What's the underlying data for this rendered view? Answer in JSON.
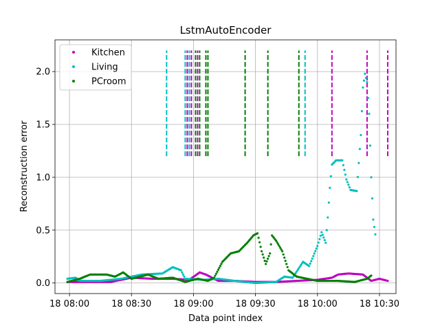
{
  "chart_data": {
    "type": "scatter",
    "title": "LstmAutoEncoder",
    "xlabel": "Data point index",
    "ylabel": "Reconstruction error",
    "xlim": [
      "2024-01-18T07:53",
      "2024-01-18T10:38"
    ],
    "ylim": [
      -0.1,
      2.3
    ],
    "grid": true,
    "legend_position": "top-left",
    "x_ticks": [
      {
        "label": "18 08:00",
        "value": "2024-01-18T08:00"
      },
      {
        "label": "18 08:30",
        "value": "2024-01-18T08:30"
      },
      {
        "label": "18 09:00",
        "value": "2024-01-18T09:00"
      },
      {
        "label": "18 09:30",
        "value": "2024-01-18T09:30"
      },
      {
        "label": "18 10:00",
        "value": "2024-01-18T10:00"
      },
      {
        "label": "18 10:30",
        "value": "2024-01-18T10:30"
      }
    ],
    "y_ticks": [
      0.0,
      0.5,
      1.0,
      1.5,
      2.0
    ],
    "y_tick_labels": [
      "0.0",
      "0.5",
      "1.0",
      "1.5",
      "2.0"
    ],
    "series": [
      {
        "name": "Kitchen",
        "color": "#bf00bf",
        "points": [
          [
            "2024-01-18T07:59",
            0.01
          ],
          [
            "2024-01-18T08:10",
            0.01
          ],
          [
            "2024-01-18T08:20",
            0.01
          ],
          [
            "2024-01-18T08:25",
            0.03
          ],
          [
            "2024-01-18T08:30",
            0.05
          ],
          [
            "2024-01-18T08:40",
            0.04
          ],
          [
            "2024-01-18T08:50",
            0.04
          ],
          [
            "2024-01-18T08:58",
            0.03
          ],
          [
            "2024-01-18T09:03",
            0.1
          ],
          [
            "2024-01-18T09:06",
            0.08
          ],
          [
            "2024-01-18T09:12",
            0.02
          ],
          [
            "2024-01-18T09:20",
            0.02
          ],
          [
            "2024-01-18T09:30",
            0.01
          ],
          [
            "2024-01-18T09:40",
            0.01
          ],
          [
            "2024-01-18T09:50",
            0.02
          ],
          [
            "2024-01-18T10:00",
            0.03
          ],
          [
            "2024-01-18T10:07",
            0.05
          ],
          [
            "2024-01-18T10:10",
            0.08
          ],
          [
            "2024-01-18T10:15",
            0.09
          ],
          [
            "2024-01-18T10:22",
            0.08
          ],
          [
            "2024-01-18T10:26",
            0.02
          ],
          [
            "2024-01-18T10:30",
            0.04
          ],
          [
            "2024-01-18T10:34",
            0.02
          ]
        ]
      },
      {
        "name": "Living",
        "color": "#00bfbf",
        "points": [
          [
            "2024-01-18T07:59",
            0.04
          ],
          [
            "2024-01-18T08:03",
            0.05
          ],
          [
            "2024-01-18T08:05",
            0.02
          ],
          [
            "2024-01-18T08:15",
            0.02
          ],
          [
            "2024-01-18T08:25",
            0.04
          ],
          [
            "2024-01-18T08:35",
            0.08
          ],
          [
            "2024-01-18T08:45",
            0.09
          ],
          [
            "2024-01-18T08:50",
            0.15
          ],
          [
            "2024-01-18T08:54",
            0.12
          ],
          [
            "2024-01-18T08:56",
            0.04
          ],
          [
            "2024-01-18T09:05",
            0.03
          ],
          [
            "2024-01-18T09:12",
            0.04
          ],
          [
            "2024-01-18T09:20",
            0.02
          ],
          [
            "2024-01-18T09:30",
            0.0
          ],
          [
            "2024-01-18T09:40",
            0.01
          ],
          [
            "2024-01-18T09:44",
            0.06
          ],
          [
            "2024-01-18T09:48",
            0.05
          ],
          [
            "2024-01-18T09:53",
            0.2
          ],
          [
            "2024-01-18T09:56",
            0.16
          ],
          [
            "2024-01-18T10:00",
            0.35
          ],
          [
            "2024-01-18T10:02",
            0.48
          ],
          [
            "2024-01-18T10:04",
            0.38
          ],
          [
            "2024-01-18T10:05",
            0.62
          ],
          [
            "2024-01-18T10:06",
            0.9
          ],
          [
            "2024-01-18T10:07",
            1.12
          ],
          [
            "2024-01-18T10:09",
            1.16
          ],
          [
            "2024-01-18T10:12",
            1.16
          ],
          [
            "2024-01-18T10:14",
            0.98
          ],
          [
            "2024-01-18T10:16",
            0.88
          ],
          [
            "2024-01-18T10:19",
            0.87
          ],
          [
            "2024-01-18T10:21",
            1.4
          ],
          [
            "2024-01-18T10:22",
            1.85
          ],
          [
            "2024-01-18T10:23",
            1.98
          ],
          [
            "2024-01-18T10:24",
            1.9
          ],
          [
            "2024-01-18T10:25",
            1.6
          ],
          [
            "2024-01-18T10:26",
            1.0
          ],
          [
            "2024-01-18T10:27",
            0.6
          ],
          [
            "2024-01-18T10:28",
            0.46
          ]
        ]
      },
      {
        "name": "PCroom",
        "color": "#007f00",
        "points": [
          [
            "2024-01-18T07:59",
            0.01
          ],
          [
            "2024-01-18T08:05",
            0.04
          ],
          [
            "2024-01-18T08:10",
            0.08
          ],
          [
            "2024-01-18T08:18",
            0.08
          ],
          [
            "2024-01-18T08:22",
            0.06
          ],
          [
            "2024-01-18T08:26",
            0.1
          ],
          [
            "2024-01-18T08:30",
            0.04
          ],
          [
            "2024-01-18T08:38",
            0.08
          ],
          [
            "2024-01-18T08:43",
            0.04
          ],
          [
            "2024-01-18T08:50",
            0.05
          ],
          [
            "2024-01-18T08:56",
            0.01
          ],
          [
            "2024-01-18T09:02",
            0.04
          ],
          [
            "2024-01-18T09:07",
            0.02
          ],
          [
            "2024-01-18T09:10",
            0.05
          ],
          [
            "2024-01-18T09:14",
            0.2
          ],
          [
            "2024-01-18T09:18",
            0.28
          ],
          [
            "2024-01-18T09:22",
            0.3
          ],
          [
            "2024-01-18T09:26",
            0.38
          ],
          [
            "2024-01-18T09:29",
            0.45
          ],
          [
            "2024-01-18T09:31",
            0.47
          ],
          [
            "2024-01-18T09:33",
            0.3
          ],
          [
            "2024-01-18T09:35",
            0.18
          ],
          [
            "2024-01-18T09:37",
            0.28
          ],
          [
            "2024-01-18T09:38",
            0.45
          ],
          [
            "2024-01-18T09:40",
            0.4
          ],
          [
            "2024-01-18T09:43",
            0.3
          ],
          [
            "2024-01-18T09:46",
            0.12
          ],
          [
            "2024-01-18T09:50",
            0.06
          ],
          [
            "2024-01-18T09:55",
            0.04
          ],
          [
            "2024-01-18T10:00",
            0.02
          ],
          [
            "2024-01-18T10:10",
            0.02
          ],
          [
            "2024-01-18T10:18",
            0.01
          ],
          [
            "2024-01-18T10:24",
            0.04
          ],
          [
            "2024-01-18T10:26",
            0.07
          ]
        ]
      }
    ],
    "vlines": [
      {
        "x": "2024-01-18T08:47",
        "color": "#00bfbf"
      },
      {
        "x": "2024-01-18T08:56",
        "color": "#00bfbf"
      },
      {
        "x": "2024-01-18T08:57",
        "color": "#bf00bf"
      },
      {
        "x": "2024-01-18T08:58",
        "color": "#00bfbf"
      },
      {
        "x": "2024-01-18T08:59",
        "color": "#bf00bf"
      },
      {
        "x": "2024-01-18T09:01",
        "color": "#007f00"
      },
      {
        "x": "2024-01-18T09:02",
        "color": "#bf00bf"
      },
      {
        "x": "2024-01-18T09:03",
        "color": "#007f00"
      },
      {
        "x": "2024-01-18T09:06",
        "color": "#007f00"
      },
      {
        "x": "2024-01-18T09:07",
        "color": "#007f00"
      },
      {
        "x": "2024-01-18T09:25",
        "color": "#007f00"
      },
      {
        "x": "2024-01-18T09:36",
        "color": "#007f00"
      },
      {
        "x": "2024-01-18T09:51",
        "color": "#007f00"
      },
      {
        "x": "2024-01-18T09:54",
        "color": "#00bfbf"
      },
      {
        "x": "2024-01-18T10:07",
        "color": "#bf00bf"
      },
      {
        "x": "2024-01-18T10:24",
        "color": "#bf00bf"
      },
      {
        "x": "2024-01-18T10:34",
        "color": "#bf00bf"
      }
    ],
    "vline_range": [
      1.2,
      2.2
    ]
  }
}
